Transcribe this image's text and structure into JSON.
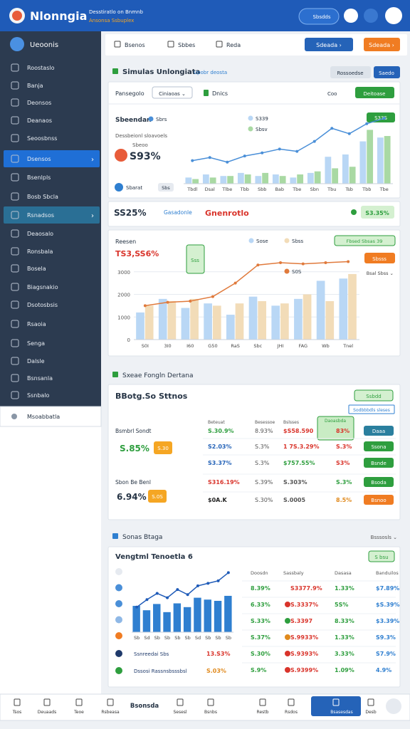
{
  "header": {
    "title": "Nlonngia",
    "subtitle": "Desstiratlo on Bnmnb",
    "tagline": "Ansonsa Ssbuplex",
    "search": "Sbsdds"
  },
  "sidebar": {
    "top": "Ueoonis",
    "chevron": "›",
    "items": [
      "Roostaslo",
      "Banja",
      "Deonsos",
      "Deanaos",
      "Seoosbnss",
      "Dsensos",
      "Bsenlpls",
      "Bosb Sbcla",
      "Rsnadsos",
      "Deaosalo",
      "Ronsbala",
      "Bosela",
      "Biagsnakio",
      "Dsotosbsis",
      "Rsaoia",
      "Senga",
      "Dalsle",
      "Bsnsanla",
      "Ssnbalo"
    ],
    "active": [
      5,
      8
    ],
    "footer": "Msoabbatla"
  },
  "toolbar": {
    "tabs": [
      "Bsenos",
      "Sbbes",
      "Reda"
    ],
    "buttons": [
      "Sdeada ›",
      "Sdeada ›"
    ]
  },
  "overview": {
    "title": "Simulas Unlongiata",
    "note": "Upobr deosta",
    "actions": [
      "Rossoedse",
      "Saedo"
    ],
    "filters": [
      "Pansegolo",
      "Ciniaoas ⌄",
      "Dnics",
      "Coo",
      "Deitoase"
    ],
    "heading": "Sbeendan",
    "caption": "Dessbeionl sloavoels",
    "kpi": "S93%",
    "sub": "Sbeoo",
    "flag": "S33S",
    "footer": [
      "Sbarat",
      "Sbs"
    ],
    "chart": {
      "type": "bar",
      "categories": [
        "Tbdl",
        "Dsal",
        "Tlbe",
        "Tbb",
        "Sbb",
        "Bab",
        "Tbe",
        "Sbn",
        "Tbu",
        "Tsb",
        "Tbb",
        "Tbe"
      ],
      "ylim": [
        0,
        100
      ],
      "series": [
        {
          "name": "S339",
          "type": "bar",
          "color": "#b9d7f5",
          "values": [
            8,
            12,
            10,
            14,
            10,
            12,
            8,
            14,
            35,
            38,
            55,
            60
          ]
        },
        {
          "name": "Sbsv",
          "type": "bar",
          "color": "#a9d9a3",
          "values": [
            6,
            8,
            10,
            12,
            14,
            10,
            12,
            16,
            20,
            22,
            70,
            62
          ]
        },
        {
          "name": "Sbrs",
          "type": "line",
          "color": "#4a8fd8",
          "values": [
            30,
            34,
            28,
            36,
            40,
            45,
            42,
            55,
            72,
            65,
            78,
            85
          ]
        }
      ]
    }
  },
  "summary": {
    "value": "SS25%",
    "label": "Gasadonle",
    "status": "Gnenrotlo",
    "pill": "S3.35%"
  },
  "performance": {
    "title": "Reesen",
    "kpi": "TS3,SS6%",
    "note": "Sss",
    "annotations": [
      "Fbsed Sbsas 39",
      "Sbsss",
      "Bsal Sbss ⌄"
    ],
    "chart": {
      "type": "bar",
      "categories": [
        "S0I",
        "3I0",
        "I60",
        "G50",
        "RaS",
        "Sbc",
        "JHI",
        "FAG",
        "Wb",
        "Tnel"
      ],
      "ylim": [
        0,
        4000
      ],
      "yticks": [
        0,
        1000,
        2000,
        3000
      ],
      "series": [
        {
          "name": "Sose",
          "type": "bar",
          "color": "#b9d7f5",
          "values": [
            1200,
            1800,
            1400,
            1600,
            1100,
            1900,
            1500,
            1800,
            2600,
            2700
          ]
        },
        {
          "name": "Sbss",
          "type": "bar",
          "color": "#f2dcb8",
          "values": [
            1500,
            1700,
            1800,
            1500,
            1600,
            1700,
            1600,
            2000,
            1700,
            2900
          ]
        },
        {
          "name": "S0S",
          "type": "line",
          "color": "#e07a3c",
          "values": [
            1500,
            1650,
            1700,
            1900,
            2500,
            3300,
            3400,
            3350,
            3400,
            3450
          ]
        }
      ]
    }
  },
  "sections": [
    {
      "title": "Sxeae Fongln Dertana",
      "heading": "BBotg.So Sttnos",
      "badge": "Ssbdd",
      "link": "Sodbbbdls sleses",
      "highlight": "Daoasbda",
      "kpis": [
        {
          "label": "Bsmbrl Sondt",
          "value": "S.85%",
          "tag": "S.30"
        },
        {
          "label": "Sbon Be Benl",
          "value": "6.94%",
          "tag": "S.0S"
        }
      ],
      "columns": [
        "Beteuat",
        "Besessoe",
        "Bslsses"
      ],
      "rows": [
        [
          "S.30.9%",
          "8.93%",
          "$S58.590",
          "83%",
          "Daaa"
        ],
        [
          "S2.03%",
          "S.3%",
          "1 7S.3.29%",
          "S.3%",
          "Ssona"
        ],
        [
          "S3.37%",
          "S.3%",
          "$757.55%",
          "S3%",
          "Bsnde"
        ],
        [
          "S316.19%",
          "S.39%",
          "S.303%",
          "S.3%",
          "Bsoda"
        ],
        [
          "$0A.K",
          "S.30%",
          "S.0005",
          "8.5%",
          "Bsnoo"
        ]
      ]
    },
    {
      "title": "Sonas Btaga",
      "menu": "Bsssosls ⌄",
      "heading": "Vengtml Tenoetla 6",
      "badge": "S bsu",
      "columns": [
        "Doosdn",
        "Sassbaly",
        "Dasasa",
        "Banduilos"
      ],
      "rows": [
        [
          "8.39%",
          "S3377.9%",
          "1.33%",
          "$7.89%"
        ],
        [
          "6.33%",
          "S.3337%",
          "5S%",
          "$S.39%"
        ],
        [
          "S.33%",
          "S.3397",
          "8.33%",
          "$3.39%"
        ],
        [
          "S.37%",
          "S.9933%",
          "1.33%",
          "S9.3%"
        ],
        [
          "S.30%",
          "S.9393%",
          "3.33%",
          "S7.9%"
        ],
        [
          "S.9%",
          "S.9399%",
          "1.09%",
          "4.9%"
        ]
      ],
      "notes": [
        [
          "Ssnreedai Sbs",
          "13.S3%"
        ],
        [
          "Dssosi Rassnsbsssbsl",
          "S.03%"
        ]
      ],
      "chart": {
        "type": "bar",
        "categories": [
          "Sb",
          "Sd",
          "Sb",
          "Sb",
          "Sb",
          "Sb",
          "Sd",
          "Sb",
          "Sb",
          "Sb"
        ],
        "ylim": [
          0,
          100
        ],
        "series": [
          {
            "name": "Sbas",
            "type": "bar",
            "color": "#2f7fd0",
            "values": [
              42,
              35,
              45,
              32,
              46,
              40,
              55,
              52,
              50,
              58
            ]
          },
          {
            "name": "Sbal",
            "type": "line",
            "color": "#1f5bb8",
            "values": [
              40,
              52,
              62,
              55,
              68,
              60,
              74,
              78,
              82,
              95
            ]
          }
        ]
      }
    }
  ],
  "bottom_nav": [
    "Tsos",
    "Deuaads",
    "Teoe",
    "Rsbeasa",
    "Bsonsda",
    "Sesesl",
    "Bsnbs",
    "Restb",
    "Rsdos",
    "Bsasesdas",
    "Desb"
  ]
}
